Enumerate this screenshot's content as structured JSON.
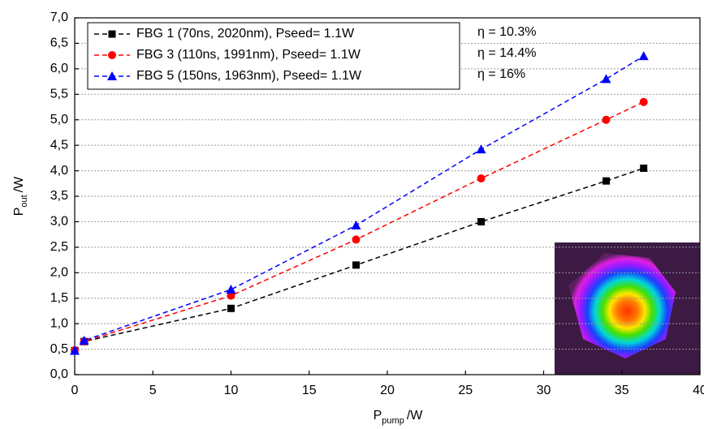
{
  "chart_data": {
    "type": "line",
    "xlabel": {
      "text": "P",
      "sub": "pump",
      "unit": "/W"
    },
    "ylabel": {
      "text": "P",
      "sub": "out",
      "unit": "/W"
    },
    "xlim": [
      0,
      40
    ],
    "xticks": [
      0,
      5,
      10,
      15,
      20,
      25,
      30,
      35,
      40
    ],
    "ylim": [
      0,
      7
    ],
    "yticks": [
      {
        "value": 0,
        "label": "0,0"
      },
      {
        "value": 0.5,
        "label": "0,5"
      },
      {
        "value": 1,
        "label": "1,0"
      },
      {
        "value": 1.5,
        "label": "1,5"
      },
      {
        "value": 2,
        "label": "2,0"
      },
      {
        "value": 2.5,
        "label": "2,5"
      },
      {
        "value": 3,
        "label": "3,0"
      },
      {
        "value": 3.5,
        "label": "3,5"
      },
      {
        "value": 4,
        "label": "4,0"
      },
      {
        "value": 4.5,
        "label": "4,5"
      },
      {
        "value": 5,
        "label": "5,0"
      },
      {
        "value": 5.5,
        "label": "5,5"
      },
      {
        "value": 6,
        "label": "6,0"
      },
      {
        "value": 6.5,
        "label": "6,5"
      },
      {
        "value": 7,
        "label": "7,0"
      }
    ],
    "grid": true,
    "x": [
      0,
      0.6,
      10,
      18,
      26,
      34,
      36.4
    ],
    "series": [
      {
        "name": "FBG 1 (70ns, 2020nm), Pseed= 1.1W",
        "color": "#000000",
        "marker": "square",
        "values": [
          0.47,
          0.65,
          1.3,
          2.15,
          3.0,
          3.8,
          4.05
        ],
        "annotation": "η = 10.3%"
      },
      {
        "name": "FBG 3 (110ns, 1991nm), Pseed= 1.1W",
        "color": "#ff0000",
        "marker": "circle",
        "values": [
          0.48,
          0.65,
          1.55,
          2.65,
          3.85,
          5.0,
          5.35
        ],
        "annotation": "η = 14.4%"
      },
      {
        "name": "FBG 5 (150ns, 1963nm), Pseed= 1.1W",
        "color": "#0000ff",
        "marker": "triangle",
        "values": [
          0.47,
          0.67,
          1.67,
          2.93,
          4.42,
          5.8,
          6.25
        ],
        "annotation": "η = 16%"
      }
    ]
  }
}
